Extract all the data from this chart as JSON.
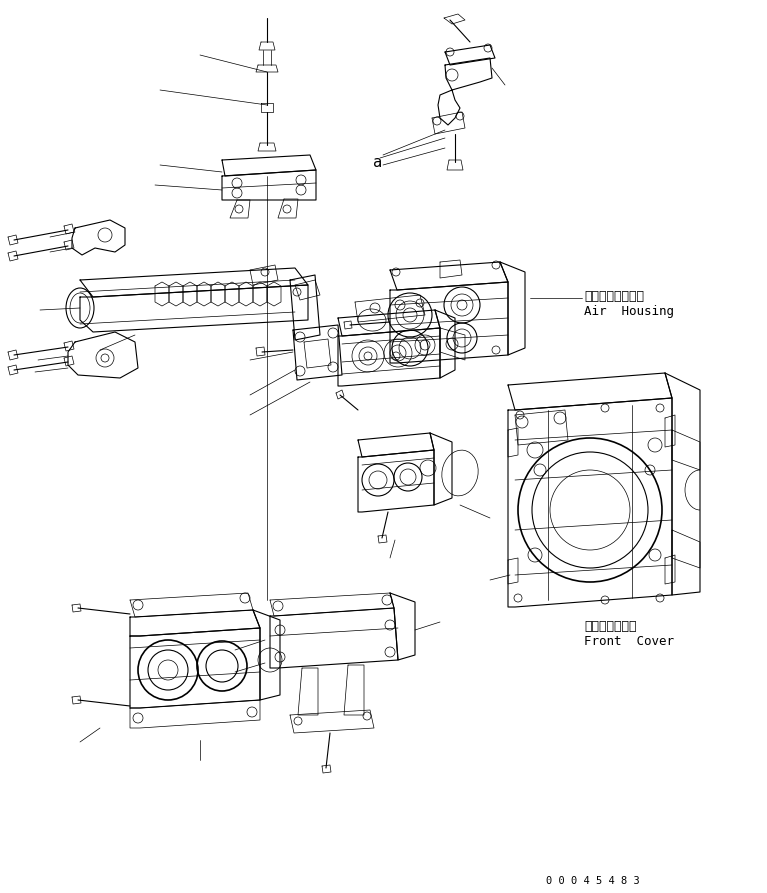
{
  "background_color": "#ffffff",
  "text_color": "#000000",
  "line_color": "#000000",
  "lw_thin": 0.5,
  "lw_med": 0.8,
  "lw_thick": 1.2,
  "labels": {
    "air_housing_jp": "エアーハウジング",
    "air_housing_en": "Air  Housing",
    "front_cover_jp": "フロントカバー",
    "front_cover_en": "Front  Cover",
    "part_number": "0 0 0 4 5 4 8 3",
    "label_a1": "a",
    "label_a2": "a"
  },
  "figsize": [
    7.67,
    8.93
  ],
  "dpi": 100
}
